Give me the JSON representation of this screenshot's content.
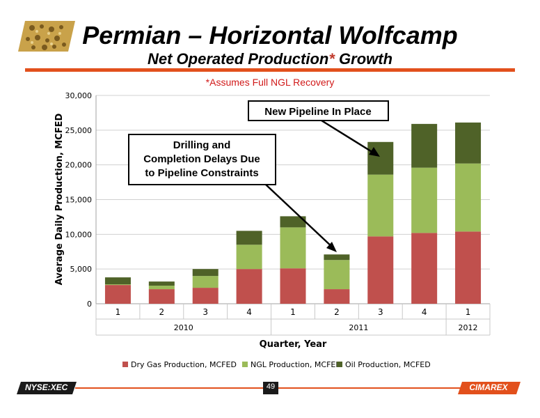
{
  "slide": {
    "title": "Permian – Horizontal Wolfcamp",
    "subtitle_main": "Net Operated Production",
    "subtitle_star": "*",
    "subtitle_tail": " Growth",
    "note": "*Assumes Full NGL Recovery"
  },
  "footer": {
    "ticker": "NYSE:XEC",
    "page": "49",
    "brand": "CIMAREX"
  },
  "colors": {
    "accent": "#e2501c",
    "dry_gas": "#c0504d",
    "ngl": "#9bbb59",
    "oil": "#4f6228"
  },
  "chart_data": {
    "type": "bar",
    "stacked": true,
    "categories": [
      "1",
      "2",
      "3",
      "4",
      "1",
      "2",
      "3",
      "4",
      "1"
    ],
    "year_groups": [
      {
        "label": "2010",
        "count": 4
      },
      {
        "label": "2011",
        "count": 4
      },
      {
        "label": "2012",
        "count": 1
      }
    ],
    "series": [
      {
        "name": "Dry Gas Production, MCFED",
        "color": "#c0504d",
        "values": [
          2700,
          2100,
          2300,
          5000,
          5100,
          2100,
          9700,
          10200,
          10400
        ]
      },
      {
        "name": "NGL Production, MCFED",
        "color": "#9bbb59",
        "values": [
          100,
          500,
          1700,
          3500,
          5900,
          4200,
          8900,
          9400,
          9800
        ]
      },
      {
        "name": "Oil Production, MCFED",
        "color": "#4f6228",
        "values": [
          1000,
          600,
          1000,
          2000,
          1600,
          800,
          4700,
          6300,
          5900
        ]
      }
    ],
    "ylabel": "Average Daily Production, MCFED",
    "xlabel": "Quarter, Year",
    "ylim": [
      0,
      30000
    ],
    "yticks": [
      "0",
      "5,000",
      "10,000",
      "15,000",
      "20,000",
      "25,000",
      "30,000"
    ],
    "grid": true,
    "legend_position": "bottom",
    "annotations": [
      {
        "text_lines": [
          "New Pipeline In Place"
        ],
        "points_to_index": 6
      },
      {
        "text_lines": [
          "Drilling and",
          "Completion Delays Due",
          "to Pipeline Constraints"
        ],
        "points_to_index": 5
      }
    ]
  }
}
